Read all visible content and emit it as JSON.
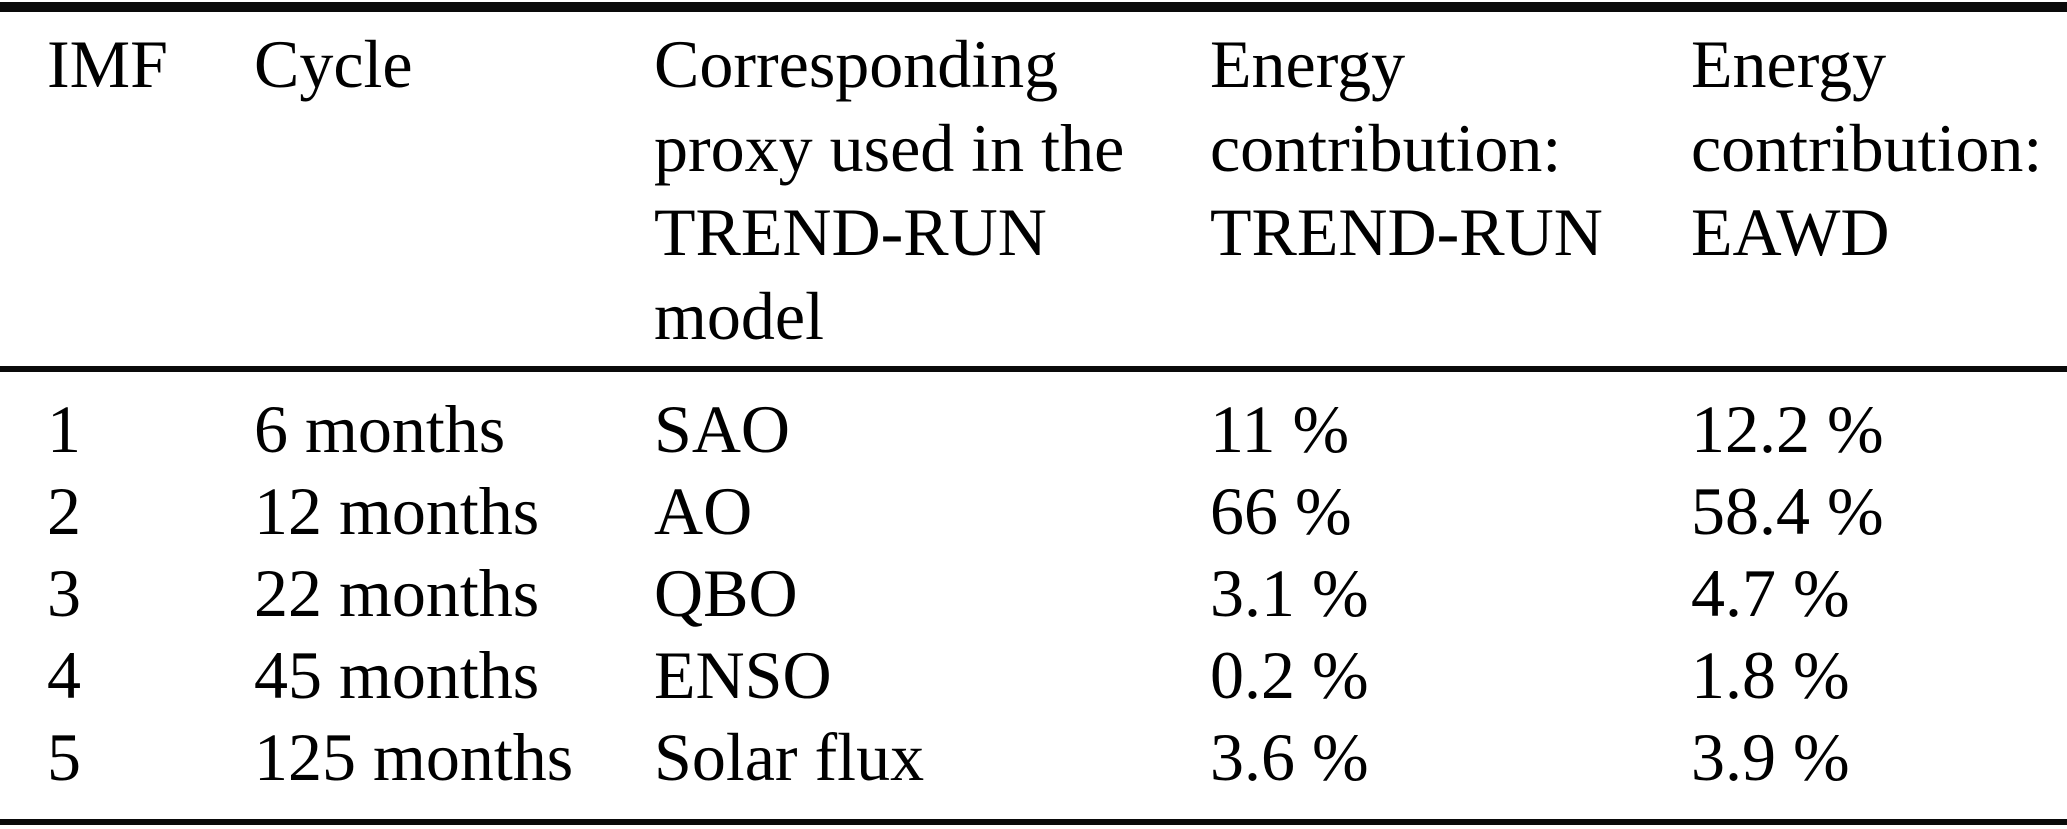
{
  "chart_data": {
    "type": "table",
    "title": "",
    "columns": [
      "IMF",
      "Cycle",
      "Corresponding proxy used in the TREND-RUN model",
      "Energy contribution: TREND-RUN",
      "Energy contribution: EAWD"
    ],
    "rows": [
      [
        "1",
        "6 months",
        "SAO",
        "11 %",
        "12.2 %"
      ],
      [
        "2",
        "12 months",
        "AO",
        "66 %",
        "58.4 %"
      ],
      [
        "3",
        "22 months",
        "QBO",
        "3.1 %",
        "4.7 %"
      ],
      [
        "4",
        "45 months",
        "ENSO",
        "0.2 %",
        "1.8 %"
      ],
      [
        "5",
        "125 months",
        "Solar flux",
        "3.6 %",
        "3.9 %"
      ]
    ]
  },
  "header": {
    "col1_lines": [
      "IMF"
    ],
    "col2_lines": [
      "Cycle"
    ],
    "col3_lines": [
      "Corresponding",
      "proxy used in the",
      "TREND-RUN",
      "model"
    ],
    "col4_lines": [
      "Energy",
      "contribution:",
      "TREND-RUN"
    ],
    "col5_lines": [
      "Energy",
      "contribution:",
      "EAWD"
    ]
  },
  "colors": {
    "text": "#000000",
    "rule": "#0a0a0a",
    "background": "#ffffff"
  }
}
